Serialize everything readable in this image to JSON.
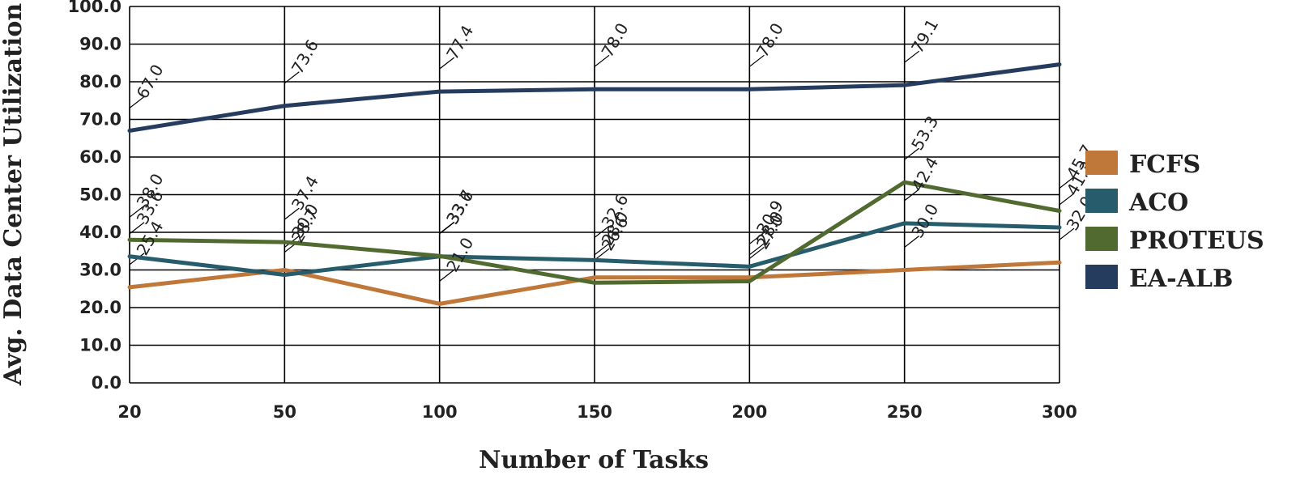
{
  "chart_data": {
    "type": "line",
    "title": "",
    "xlabel": "Number of Tasks",
    "ylabel": "Avg. Data Center Utilization",
    "categories": [
      "20",
      "50",
      "100",
      "150",
      "200",
      "250",
      "300"
    ],
    "ylim": [
      0,
      100
    ],
    "yticks": [
      "0.0",
      "10.0",
      "20.0",
      "30.0",
      "40.0",
      "50.0",
      "60.0",
      "70.0",
      "80.0",
      "90.0",
      "100.0"
    ],
    "grid": true,
    "legend_position": "right",
    "series": [
      {
        "name": "FCFS",
        "color": "#c0773a",
        "values": [
          25.4,
          30.0,
          21.0,
          28.0,
          28.0,
          30.0,
          32.0
        ],
        "labels": [
          "25.4",
          "30.0",
          "21.0",
          "28.0",
          "28.0",
          "30.0",
          "32.0"
        ]
      },
      {
        "name": "ACO",
        "color": "#265c6c",
        "values": [
          33.6,
          28.7,
          33.6,
          32.6,
          30.9,
          42.4,
          41.3
        ],
        "labels": [
          "33.6",
          "28.7",
          "33.6",
          "32.6",
          "30.9",
          "42.4",
          "41.3"
        ]
      },
      {
        "name": "PROTEUS",
        "color": "#506a30",
        "values": [
          38.0,
          37.4,
          33.7,
          26.6,
          27.0,
          53.3,
          45.7
        ],
        "labels": [
          "38.0",
          "37.4",
          "33.7",
          "26.6",
          "27.0",
          "53.3",
          "45.7"
        ]
      },
      {
        "name": "EA-ALB",
        "color": "#263c5e",
        "values": [
          67.0,
          73.6,
          77.4,
          78.0,
          78.0,
          79.1,
          84.6
        ],
        "labels": [
          "67.0",
          "73.6",
          "77.4",
          "78.0",
          "78.0",
          "79.1",
          ""
        ]
      }
    ]
  }
}
